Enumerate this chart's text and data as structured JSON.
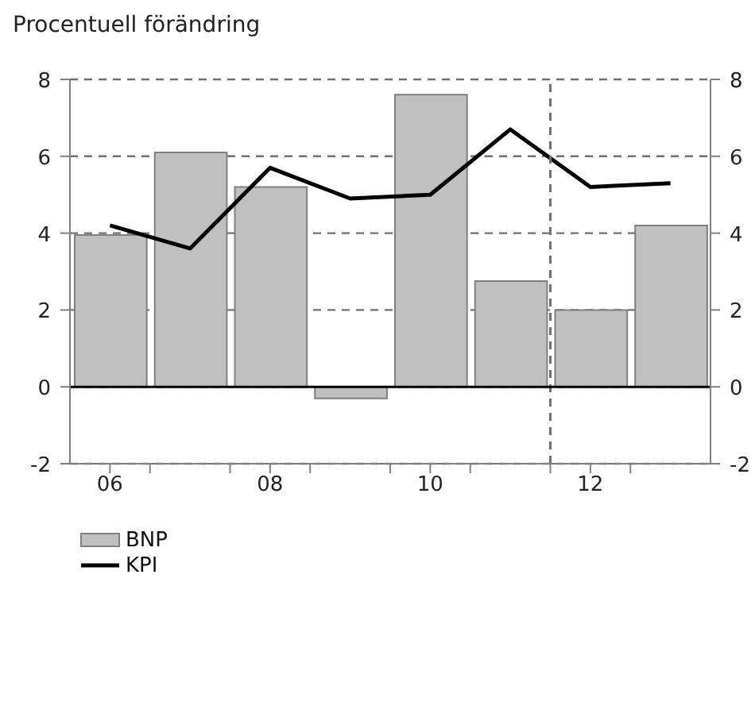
{
  "chart_data": {
    "type": "bar",
    "title": "Procentuell förändring",
    "x": [
      2006,
      2007,
      2008,
      2009,
      2010,
      2011,
      2012,
      2013
    ],
    "xlim": [
      2005.5,
      2013.5
    ],
    "xticks": [
      {
        "value": 2006,
        "label": "06"
      },
      {
        "value": 2006.5,
        "label": null
      },
      {
        "value": 2007.5,
        "label": null
      },
      {
        "value": 2008,
        "label": "08"
      },
      {
        "value": 2008.5,
        "label": null
      },
      {
        "value": 2009.5,
        "label": null
      },
      {
        "value": 2010,
        "label": "10"
      },
      {
        "value": 2010.5,
        "label": null
      },
      {
        "value": 2011.5,
        "label": null
      },
      {
        "value": 2012,
        "label": "12"
      },
      {
        "value": 2012.5,
        "label": null
      }
    ],
    "ylim": [
      -2,
      8
    ],
    "yticks": [
      -2,
      0,
      2,
      4,
      6,
      8
    ],
    "y2lim": [
      -2,
      8
    ],
    "y2ticks": [
      -2,
      0,
      2,
      4,
      6,
      8
    ],
    "series": [
      {
        "name": "BNP",
        "color": "#c0c0c0",
        "values": [
          3.95,
          6.1,
          5.2,
          -0.3,
          7.6,
          2.75,
          2.0,
          4.2
        ]
      },
      {
        "name": "KPI",
        "type": "line",
        "color": "#000000",
        "values": [
          4.2,
          3.6,
          5.7,
          4.9,
          5.0,
          6.7,
          5.2,
          5.3
        ]
      }
    ],
    "ref_lines": [
      {
        "axis": "x",
        "value": 2011.5,
        "color": "#707070",
        "line_style": "dashed"
      },
      {
        "axis": "y",
        "value": 0,
        "color": "#000000",
        "line_style": "solid"
      }
    ],
    "grid": "y",
    "legend": "bottom left",
    "marker": "none",
    "line_style": "solid"
  }
}
